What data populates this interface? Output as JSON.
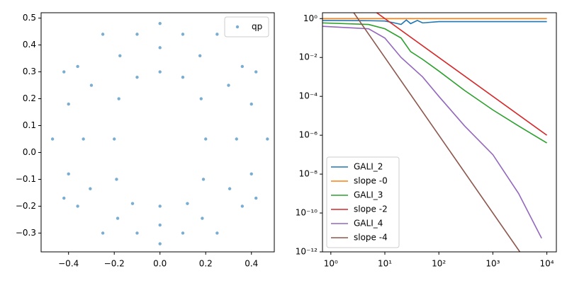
{
  "chart_data": [
    {
      "type": "scatter",
      "legend": "upper right",
      "xlim": [
        -0.52,
        0.5
      ],
      "ylim": [
        -0.37,
        0.52
      ],
      "xticks": [
        {
          "value": -0.4,
          "label": "−0.4"
        },
        {
          "value": -0.2,
          "label": "−0.2"
        },
        {
          "value": 0,
          "label": "0.0"
        },
        0.2,
        0.4
      ],
      "yticks": [
        {
          "value": -0.3,
          "label": "−0.3"
        },
        {
          "value": -0.2,
          "label": "−0.2"
        },
        {
          "value": -0.1,
          "label": "−0.1"
        },
        {
          "value": 0,
          "label": "0.0"
        },
        0.1,
        0.2,
        0.3,
        0.4,
        0.5
      ],
      "x": [
        0.47,
        0.42,
        0.25,
        0,
        -0.25,
        -0.42,
        -0.47,
        -0.42,
        -0.25,
        0,
        0.25,
        0.42,
        0.2,
        0.18,
        0.1,
        0,
        -0.1,
        -0.18,
        -0.2,
        -0.19,
        -0.12,
        0,
        0.12,
        0.19,
        0.335,
        0.3,
        0.175,
        0,
        -0.175,
        -0.3,
        -0.335,
        -0.305,
        -0.185,
        0,
        0.185,
        0.305,
        0.4,
        0.36,
        0.1,
        -0.1,
        -0.36,
        -0.4,
        -0.4,
        -0.36,
        -0.1,
        0.1,
        0.36,
        0.4
      ],
      "series": [
        {
          "name": "qp",
          "color": "#1f77b4",
          "values": [
            0.05,
            0.3,
            0.44,
            0.48,
            0.44,
            0.3,
            0.05,
            -0.17,
            -0.3,
            -0.34,
            -0.3,
            -0.17,
            0.05,
            0.2,
            0.28,
            0.3,
            0.28,
            0.2,
            0.05,
            -0.1,
            -0.19,
            -0.2,
            -0.19,
            -0.1,
            0.05,
            0.25,
            0.36,
            0.39,
            0.36,
            0.25,
            0.05,
            -0.135,
            -0.245,
            -0.27,
            -0.245,
            -0.135,
            0.18,
            0.32,
            0.44,
            0.44,
            0.32,
            0.18,
            -0.08,
            -0.2,
            -0.3,
            -0.3,
            -0.2,
            -0.08
          ]
        }
      ]
    },
    {
      "type": "line",
      "legend": "lower left",
      "xscale": "log",
      "yscale": "log",
      "xlim": [
        0.7,
        15000
      ],
      "ylim": [
        1e-12,
        2
      ],
      "xticks": [
        {
          "value": 1,
          "label": "10⁰"
        },
        {
          "value": 10,
          "label": "10¹"
        },
        {
          "value": 100,
          "label": "10²"
        },
        {
          "value": 1000,
          "label": "10³"
        },
        {
          "value": 10000,
          "label": "10⁴"
        }
      ],
      "yticks": [
        {
          "value": 1e-12,
          "label": "10⁻¹²"
        },
        {
          "value": 1e-10,
          "label": "10⁻¹⁰"
        },
        {
          "value": 1e-08,
          "label": "10⁻⁸"
        },
        {
          "value": 1e-06,
          "label": "10⁻⁶"
        },
        {
          "value": 0.0001,
          "label": "10⁻⁴"
        },
        {
          "value": 0.01,
          "label": "10⁻²"
        },
        {
          "value": 1,
          "label": "10⁰"
        }
      ],
      "series": [
        {
          "name": "GALI_2",
          "color": "#1f77b4",
          "x": [
            0.7,
            5,
            10,
            15,
            20,
            25,
            30,
            40,
            50,
            100,
            1000,
            10000
          ],
          "values": [
            0.8,
            0.78,
            0.75,
            0.6,
            0.5,
            0.85,
            0.55,
            0.8,
            0.6,
            0.7,
            0.7,
            0.7
          ]
        },
        {
          "name": "slope -0",
          "color": "#ff7f0e",
          "x": [
            0.7,
            10000
          ],
          "values": [
            1,
            1
          ]
        },
        {
          "name": "GALI_3",
          "color": "#2ca02c",
          "x": [
            0.7,
            5,
            10,
            20,
            30,
            50,
            100,
            300,
            1000,
            3000,
            10000
          ],
          "values": [
            0.6,
            0.5,
            0.3,
            0.1,
            0.02,
            0.008,
            0.002,
            0.0002,
            2e-05,
            3e-06,
            4e-07
          ]
        },
        {
          "name": "slope -2",
          "color": "#d62728",
          "x": [
            7,
            10000
          ],
          "values": [
            2.04,
            1e-06
          ]
        },
        {
          "name": "GALI_4",
          "color": "#9467bd",
          "x": [
            0.7,
            5,
            10,
            20,
            50,
            100,
            300,
            1000,
            3000,
            8000
          ],
          "values": [
            0.4,
            0.3,
            0.1,
            0.01,
            0.001,
            0.0001,
            3e-06,
            1e-07,
            1e-09,
            5e-12
          ]
        },
        {
          "name": "slope -4",
          "color": "#8c564b",
          "x": [
            2.5,
            3162
          ],
          "values": [
            2.56,
            1e-12
          ]
        }
      ]
    }
  ]
}
